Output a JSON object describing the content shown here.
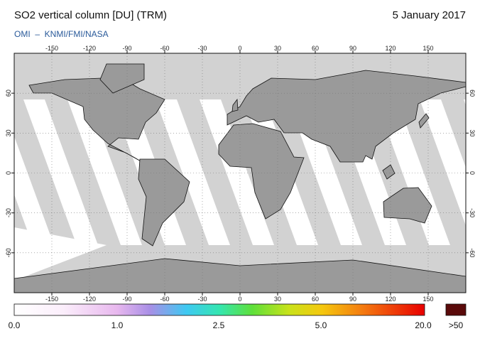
{
  "header": {
    "title": "SO2 vertical column [DU] (TRM)",
    "date": "5 January 2017",
    "credit": "OMI  –  KNMI/FMI/NASA"
  },
  "map": {
    "xlim": [
      -180,
      180
    ],
    "ylim": [
      -90,
      90
    ],
    "lon_ticks": [
      -150,
      -120,
      -90,
      -60,
      -30,
      0,
      30,
      60,
      90,
      120,
      150
    ],
    "lat_ticks": [
      -60,
      -30,
      0,
      30,
      60
    ]
  },
  "colorbar": {
    "labels": [
      "0.0",
      "1.0",
      "2.5",
      "5.0",
      "20.0"
    ],
    "overflow": ">50"
  }
}
